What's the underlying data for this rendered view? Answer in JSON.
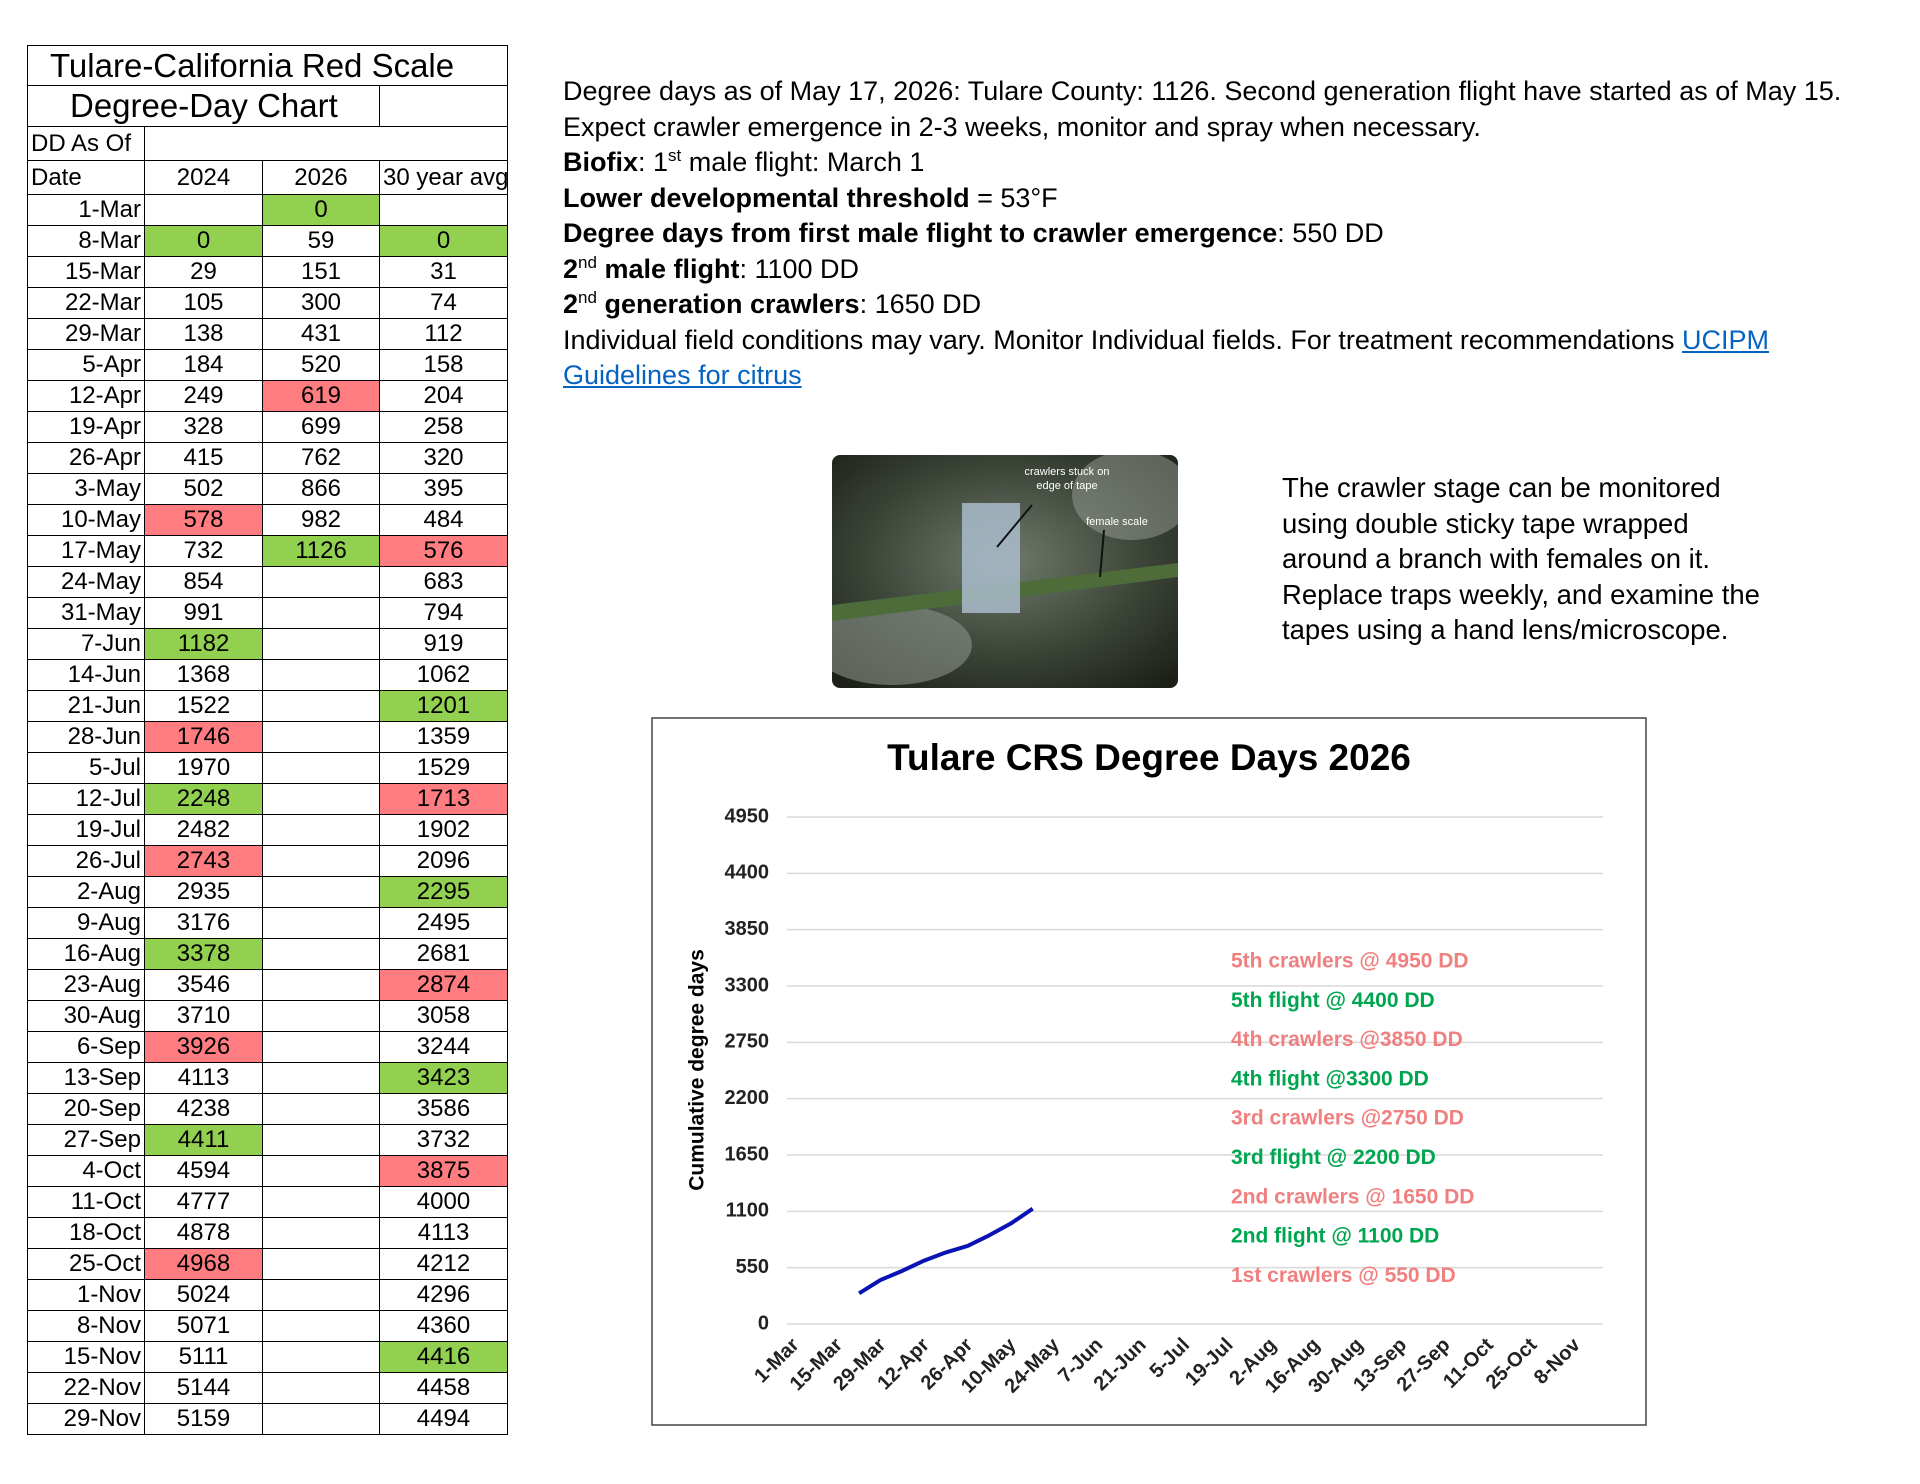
{
  "table": {
    "title": "Tulare-California Red Scale",
    "subtitle": "Degree-Day Chart",
    "as_of": "DD As Of",
    "headers": [
      "Date",
      "2024",
      "2026",
      "30 year avg"
    ],
    "rows": [
      [
        "1-Mar",
        null,
        0,
        null
      ],
      [
        "8-Mar",
        0,
        59,
        0
      ],
      [
        "15-Mar",
        29,
        151,
        31
      ],
      [
        "22-Mar",
        105,
        300,
        74
      ],
      [
        "29-Mar",
        138,
        431,
        112
      ],
      [
        "5-Apr",
        184,
        520,
        158
      ],
      [
        "12-Apr",
        249,
        619,
        204
      ],
      [
        "19-Apr",
        328,
        699,
        258
      ],
      [
        "26-Apr",
        415,
        762,
        320
      ],
      [
        "3-May",
        502,
        866,
        395
      ],
      [
        "10-May",
        578,
        982,
        484
      ],
      [
        "17-May",
        732,
        1126,
        576
      ],
      [
        "24-May",
        854,
        null,
        683
      ],
      [
        "31-May",
        991,
        null,
        794
      ],
      [
        "7-Jun",
        1182,
        null,
        919
      ],
      [
        "14-Jun",
        1368,
        null,
        1062
      ],
      [
        "21-Jun",
        1522,
        null,
        1201
      ],
      [
        "28-Jun",
        1746,
        null,
        1359
      ],
      [
        "5-Jul",
        1970,
        null,
        1529
      ],
      [
        "12-Jul",
        2248,
        null,
        1713
      ],
      [
        "19-Jul",
        2482,
        null,
        1902
      ],
      [
        "26-Jul",
        2743,
        null,
        2096
      ],
      [
        "2-Aug",
        2935,
        null,
        2295
      ],
      [
        "9-Aug",
        3176,
        null,
        2495
      ],
      [
        "16-Aug",
        3378,
        null,
        2681
      ],
      [
        "23-Aug",
        3546,
        null,
        2874
      ],
      [
        "30-Aug",
        3710,
        null,
        3058
      ],
      [
        "6-Sep",
        3926,
        null,
        3244
      ],
      [
        "13-Sep",
        4113,
        null,
        3423
      ],
      [
        "20-Sep",
        4238,
        null,
        3586
      ],
      [
        "27-Sep",
        4411,
        null,
        3732
      ],
      [
        "4-Oct",
        4594,
        null,
        3875
      ],
      [
        "11-Oct",
        4777,
        null,
        4000
      ],
      [
        "18-Oct",
        4878,
        null,
        4113
      ],
      [
        "25-Oct",
        4968,
        null,
        4212
      ],
      [
        "1-Nov",
        5024,
        null,
        4296
      ],
      [
        "8-Nov",
        5071,
        null,
        4360
      ],
      [
        "15-Nov",
        5111,
        null,
        4416
      ],
      [
        "22-Nov",
        5144,
        null,
        4458
      ],
      [
        "29-Nov",
        5159,
        null,
        4494
      ]
    ],
    "colors": {
      "green": "#92d050",
      "red": "#ff7c80"
    },
    "highlights": [
      {
        "row": 0,
        "col": 2,
        "color": "green"
      },
      {
        "row": 1,
        "col": 1,
        "color": "green"
      },
      {
        "row": 1,
        "col": 3,
        "color": "green"
      },
      {
        "row": 6,
        "col": 2,
        "color": "red"
      },
      {
        "row": 10,
        "col": 1,
        "color": "red"
      },
      {
        "row": 11,
        "col": 2,
        "color": "green"
      },
      {
        "row": 11,
        "col": 3,
        "color": "red"
      },
      {
        "row": 14,
        "col": 1,
        "color": "green"
      },
      {
        "row": 16,
        "col": 3,
        "color": "green"
      },
      {
        "row": 17,
        "col": 1,
        "color": "red"
      },
      {
        "row": 19,
        "col": 1,
        "color": "green"
      },
      {
        "row": 19,
        "col": 3,
        "color": "red"
      },
      {
        "row": 21,
        "col": 1,
        "color": "red"
      },
      {
        "row": 22,
        "col": 3,
        "color": "green"
      },
      {
        "row": 24,
        "col": 1,
        "color": "green"
      },
      {
        "row": 25,
        "col": 3,
        "color": "red"
      },
      {
        "row": 27,
        "col": 1,
        "color": "red"
      },
      {
        "row": 28,
        "col": 3,
        "color": "green"
      },
      {
        "row": 30,
        "col": 1,
        "color": "green"
      },
      {
        "row": 31,
        "col": 3,
        "color": "red"
      },
      {
        "row": 34,
        "col": 1,
        "color": "red"
      },
      {
        "row": 37,
        "col": 3,
        "color": "green"
      }
    ]
  },
  "info": {
    "paragraphs": [
      [
        {
          "text": "Degree days as of May 17, 2026: Tulare County: 1126. Second generation flight have started as of May 15. Expect crawler emergence in 2-3 weeks, monitor and spray when necessary."
        }
      ],
      [
        {
          "text": "Biofix",
          "style": "bold"
        },
        {
          "text": ": 1"
        },
        {
          "text": "st",
          "style": "sup"
        },
        {
          "text": " male flight: March 1"
        }
      ],
      [
        {
          "text": "Lower developmental threshold",
          "style": "bold"
        },
        {
          "text": " = 53°F"
        }
      ],
      [
        {
          "text": "Degree days from first male flight to crawler emergence",
          "style": "bold"
        },
        {
          "text": ": 550 DD"
        }
      ],
      [
        {
          "text": "2",
          "style": "bold"
        },
        {
          "text": "nd",
          "style": "sup"
        },
        {
          "text": " male flight",
          "style": "bold"
        },
        {
          "text": ": 1100 DD"
        }
      ],
      [
        {
          "text": "2",
          "style": "bold"
        },
        {
          "text": "nd",
          "style": "sup"
        },
        {
          "text": " generation crawlers",
          "style": "bold"
        },
        {
          "text": ": 1650 DD"
        }
      ],
      [
        {
          "text": "Individual field conditions may vary. Monitor Individual fields. For treatment recommendations "
        },
        {
          "text": "UCIPM Guidelines for citrus",
          "style": "link"
        }
      ]
    ]
  },
  "photo": {
    "labels": [
      "crawlers stuck on",
      "edge of tape",
      "female scale"
    ]
  },
  "caption": {
    "lines": [
      "The crawler stage can be monitored",
      "using double sticky tape wrapped",
      "around a branch with females on it.",
      "Replace traps weekly, and examine the",
      "tapes using a hand lens/microscope."
    ]
  },
  "chart_data": {
    "type": "line",
    "title": "Tulare CRS Degree Days 2026",
    "ylabel": "Cumulative degree days",
    "categories": [
      "1-Mar",
      null,
      "15-Mar",
      null,
      "29-Mar",
      null,
      "12-Apr",
      null,
      "26-Apr",
      null,
      "10-May",
      null,
      "24-May",
      null,
      "7-Jun",
      null,
      "21-Jun",
      null,
      "5-Jul",
      null,
      "19-Jul",
      null,
      "2-Aug",
      null,
      "16-Aug",
      null,
      "30-Aug",
      null,
      "13-Sep",
      null,
      "27-Sep",
      null,
      "11-Oct",
      null,
      "25-Oct",
      null,
      "8-Nov"
    ],
    "values": [
      null,
      null,
      null,
      300,
      431,
      520,
      619,
      699,
      762,
      866,
      982,
      1126,
      null,
      null,
      null,
      null,
      null,
      null,
      null,
      null,
      null,
      null,
      null,
      null,
      null,
      null,
      null,
      null,
      null,
      null,
      null,
      null,
      null,
      null,
      null,
      null,
      null
    ],
    "color": "#0a14b4",
    "ylim": [
      0,
      4950
    ],
    "yticks": [
      0,
      550,
      1100,
      1650,
      2200,
      2750,
      3300,
      3850,
      4400,
      4950
    ],
    "grid": true,
    "annotations": [
      {
        "text": "5th crawlers @ 4950 DD",
        "color": "#f08080"
      },
      {
        "text": "5th flight @ 4400 DD",
        "color": "#00a550"
      },
      {
        "text": "4th crawlers @3850 DD",
        "color": "#f08080"
      },
      {
        "text": "4th flight @3300 DD",
        "color": "#00a550"
      },
      {
        "text": "3rd crawlers @2750 DD",
        "color": "#f08080"
      },
      {
        "text": "3rd flight @ 2200 DD",
        "color": "#00a550"
      },
      {
        "text": "2nd crawlers @ 1650 DD",
        "color": "#f08080"
      },
      {
        "text": "2nd flight @ 1100 DD",
        "color": "#00a550"
      },
      {
        "text": "1st crawlers @ 550 DD",
        "color": "#f08080"
      }
    ]
  }
}
